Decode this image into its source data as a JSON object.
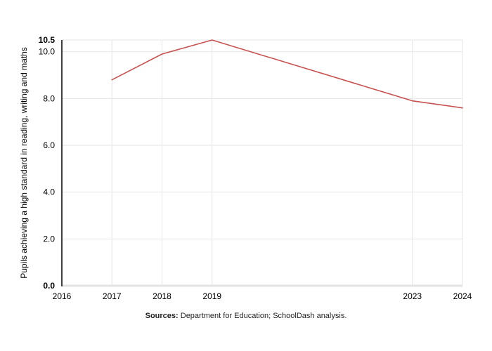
{
  "chart_data": {
    "type": "line",
    "title": "",
    "xlabel": "",
    "ylabel": "Pupils achieving a high standard in reading, writing and maths",
    "x": [
      2017,
      2018,
      2019,
      2023,
      2024
    ],
    "series": [
      {
        "values": [
          8.8,
          9.9,
          10.5,
          7.9,
          7.6
        ],
        "color": "#c8524f"
      }
    ],
    "xlim": [
      2016,
      2024
    ],
    "ylim": [
      0,
      10.5
    ],
    "x_ticks": [
      "2016",
      "2017",
      "2018",
      "2019",
      "2023",
      "2024"
    ],
    "y_ticks": [
      "0.0",
      "2.0",
      "4.0",
      "6.0",
      "8.0",
      "10.0",
      "10.5"
    ],
    "grid": true,
    "axis_color": "#000000",
    "grid_color": "#e6e6e6"
  },
  "source": {
    "label": "Sources:",
    "text": "Department for Education; SchoolDash analysis."
  }
}
